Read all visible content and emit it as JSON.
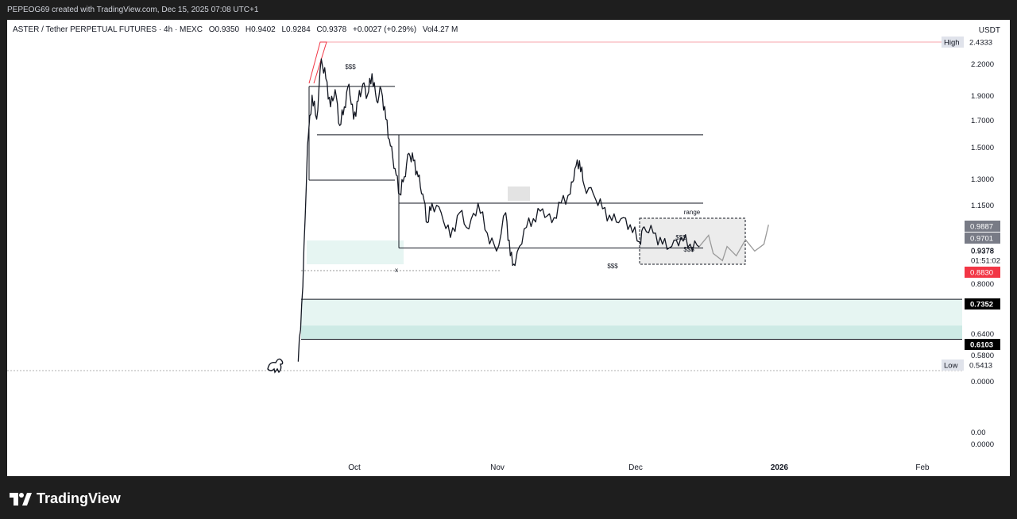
{
  "header": {
    "caption": "PEPEOG69 created with TradingView.com, Dec 15, 2025 07:08 UTC+1"
  },
  "legend": {
    "symbol": "ASTER / Tether PERPETUAL FUTURES · 4h · MEXC",
    "open": "O0.9350",
    "high": "H0.9402",
    "low": "L0.9284",
    "close": "C0.9378",
    "change": "+0.0027 (+0.29%)",
    "volume": "Vol4.27 M"
  },
  "currency": "USDT",
  "brand": "TradingView",
  "colors": {
    "up": "#131722",
    "accent_red": "#f23645",
    "zone": "#b2dfdb",
    "tag_dark": "#000000",
    "tag_grey": "#787b86"
  },
  "chart_data": {
    "type": "candlestick",
    "y_scale": "log",
    "x_labels": [
      "Oct",
      "Nov",
      "Dec",
      "2026",
      "Feb"
    ],
    "y_tick_labels": [
      "2.2000",
      "1.9000",
      "1.7000",
      "1.5000",
      "1.3000",
      "1.1500",
      "0.9378",
      "0.8000",
      "0.6400",
      "0.5800",
      "0.0000",
      "0.00",
      "0.0000"
    ],
    "price_tags": [
      {
        "label": "High",
        "value": "2.4333",
        "style": "marker"
      },
      {
        "label": "",
        "value": "0.9887",
        "style": "grey"
      },
      {
        "label": "",
        "value": "0.9701",
        "style": "grey"
      },
      {
        "label": "",
        "value": "0.9378",
        "style": "plain"
      },
      {
        "label": "",
        "value": "01:51:02",
        "style": "plain"
      },
      {
        "label": "",
        "value": "0.8830",
        "style": "red"
      },
      {
        "label": "",
        "value": "0.7352",
        "style": "dark"
      },
      {
        "label": "",
        "value": "0.6103",
        "style": "dark"
      },
      {
        "label": "Low",
        "value": "0.5413",
        "style": "marker"
      }
    ],
    "price_path": [
      [
        "Sep 19",
        0.55
      ],
      [
        "Sep 20",
        0.78
      ],
      [
        "Sep 21",
        1.5
      ],
      [
        "Sep 22",
        1.9
      ],
      [
        "Sep 23",
        1.7
      ],
      [
        "Sep 24",
        2.25
      ],
      [
        "Sep 25",
        2.05
      ],
      [
        "Sep 26",
        1.8
      ],
      [
        "Sep 27",
        1.95
      ],
      [
        "Sep 28",
        1.65
      ],
      [
        "Sep 29",
        1.8
      ],
      [
        "Sep 30",
        2.0
      ],
      [
        "Oct 1",
        1.7
      ],
      [
        "Oct 2",
        1.85
      ],
      [
        "Oct 3",
        2.0
      ],
      [
        "Oct 4",
        1.9
      ],
      [
        "Oct 5",
        2.1
      ],
      [
        "Oct 6",
        1.85
      ],
      [
        "Oct 7",
        1.95
      ],
      [
        "Oct 8",
        1.7
      ],
      [
        "Oct 9",
        1.5
      ],
      [
        "Oct 10",
        1.35
      ],
      [
        "Oct 11",
        1.2
      ],
      [
        "Oct 12",
        1.3
      ],
      [
        "Oct 13",
        1.45
      ],
      [
        "Oct 14",
        1.4
      ],
      [
        "Oct 15",
        1.3
      ],
      [
        "Oct 16",
        1.2
      ],
      [
        "Oct 17",
        1.05
      ],
      [
        "Oct 18",
        1.15
      ],
      [
        "Oct 20",
        1.1
      ],
      [
        "Oct 22",
        0.98
      ],
      [
        "Oct 24",
        1.1
      ],
      [
        "Oct 26",
        1.02
      ],
      [
        "Oct 28",
        1.15
      ],
      [
        "Oct 30",
        1.0
      ],
      [
        "Nov 1",
        0.92
      ],
      [
        "Nov 3",
        1.1
      ],
      [
        "Nov 4",
        0.9
      ],
      [
        "Nov 5",
        0.86
      ],
      [
        "Nov 7",
        1.02
      ],
      [
        "Nov 9",
        1.07
      ],
      [
        "Nov 11",
        1.12
      ],
      [
        "Nov 13",
        1.05
      ],
      [
        "Nov 15",
        1.15
      ],
      [
        "Nov 17",
        1.2
      ],
      [
        "Nov 18",
        1.35
      ],
      [
        "Nov 19",
        1.4
      ],
      [
        "Nov 20",
        1.25
      ],
      [
        "Nov 22",
        1.2
      ],
      [
        "Nov 24",
        1.12
      ],
      [
        "Nov 26",
        1.06
      ],
      [
        "Nov 28",
        1.07
      ],
      [
        "Nov 30",
        1.04
      ],
      [
        "Dec 2",
        0.96
      ],
      [
        "Dec 3",
        1.03
      ],
      [
        "Dec 5",
        1.0
      ],
      [
        "Dec 7",
        0.95
      ],
      [
        "Dec 9",
        0.94
      ],
      [
        "Dec 11",
        0.98
      ],
      [
        "Dec 13",
        0.95
      ],
      [
        "Dec 15",
        0.9378
      ]
    ],
    "projection_path": [
      [
        "Dec 15",
        0.94
      ],
      [
        "Dec 17",
        0.99
      ],
      [
        "Dec 18",
        0.91
      ],
      [
        "Dec 20",
        0.88
      ],
      [
        "Dec 21",
        0.94
      ],
      [
        "Dec 23",
        0.9
      ],
      [
        "Dec 25",
        0.97
      ],
      [
        "Dec 27",
        0.92
      ],
      [
        "Dec 29",
        0.95
      ],
      [
        "Dec 30",
        1.04
      ]
    ],
    "annotations": [
      "$$$",
      "$$$",
      "$$$",
      "range",
      "x",
      "$$$"
    ],
    "levels": [
      2.4333,
      1.98,
      1.58,
      1.28,
      1.15,
      0.93
    ],
    "zones": [
      [
        0.6103,
        0.7352
      ],
      [
        0.96,
        1.03
      ]
    ]
  }
}
